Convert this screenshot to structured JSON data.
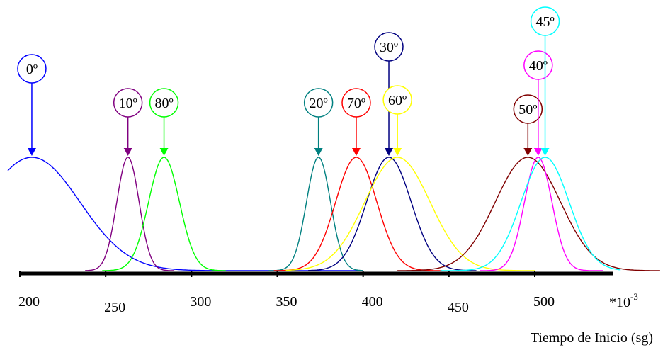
{
  "chart_data": {
    "type": "line",
    "title": "",
    "xlabel": "Tiempo de Inicio (sg)",
    "xscale_note": "*10",
    "xscale_exp": "-3",
    "ylabel": "",
    "xlim": [
      200,
      500
    ],
    "x_ticks": [
      "200",
      "250",
      "300",
      "350",
      "400",
      "450",
      "500"
    ],
    "grid": false,
    "series": [
      {
        "name": "0º",
        "color": "#0000ff",
        "peak_x": 207,
        "width": 28,
        "x_range": [
          193,
          400
        ]
      },
      {
        "name": "10º",
        "color": "#800080",
        "peak_x": 263,
        "width": 6.5,
        "x_range": [
          238,
          290
        ]
      },
      {
        "name": "80º",
        "color": "#00ff00",
        "peak_x": 284,
        "width": 9,
        "x_range": [
          248,
          320
        ]
      },
      {
        "name": "20º",
        "color": "#008080",
        "peak_x": 374,
        "width": 7,
        "x_range": [
          345,
          400
        ]
      },
      {
        "name": "70º",
        "color": "#ff0000",
        "peak_x": 396,
        "width": 12,
        "x_range": [
          348,
          446
        ]
      },
      {
        "name": "30º",
        "color": "#000080",
        "peak_x": 415,
        "width": 13,
        "x_range": [
          368,
          466
        ]
      },
      {
        "name": "60º",
        "color": "#ffff00",
        "peak_x": 420,
        "width": 19,
        "x_range": [
          355,
          500
        ]
      },
      {
        "name": "50º",
        "color": "#800000",
        "peak_x": 496,
        "width": 19,
        "x_range": [
          420,
          573
        ]
      },
      {
        "name": "40º",
        "color": "#ff00ff",
        "peak_x": 502,
        "width": 8,
        "x_range": [
          468,
          540
        ]
      },
      {
        "name": "45º",
        "color": "#00ffff",
        "peak_x": 506,
        "width": 14,
        "x_range": [
          445,
          550
        ]
      }
    ]
  }
}
